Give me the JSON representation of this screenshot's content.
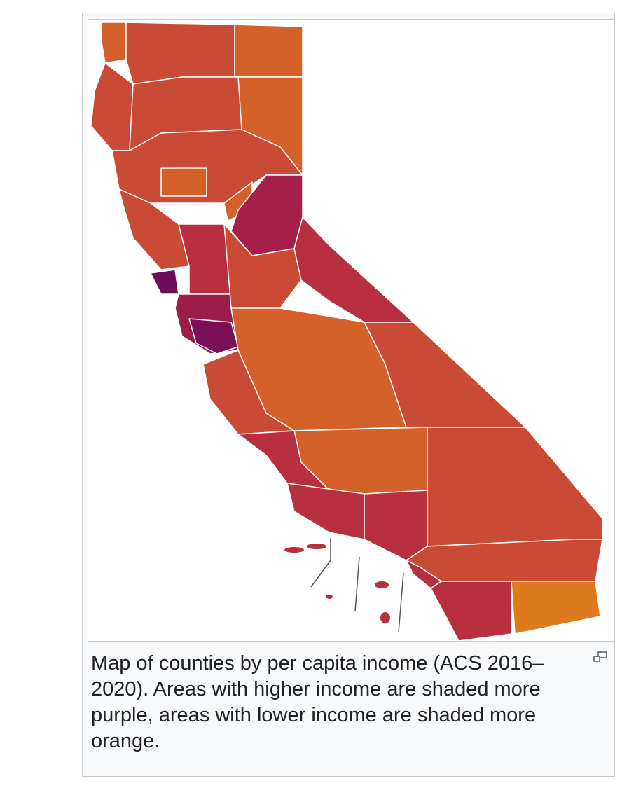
{
  "caption": "Map of counties by per capita income (ACS 2016–2020). Areas with higher income are shaded more purple, areas with lower income are shaded more orange."
}
